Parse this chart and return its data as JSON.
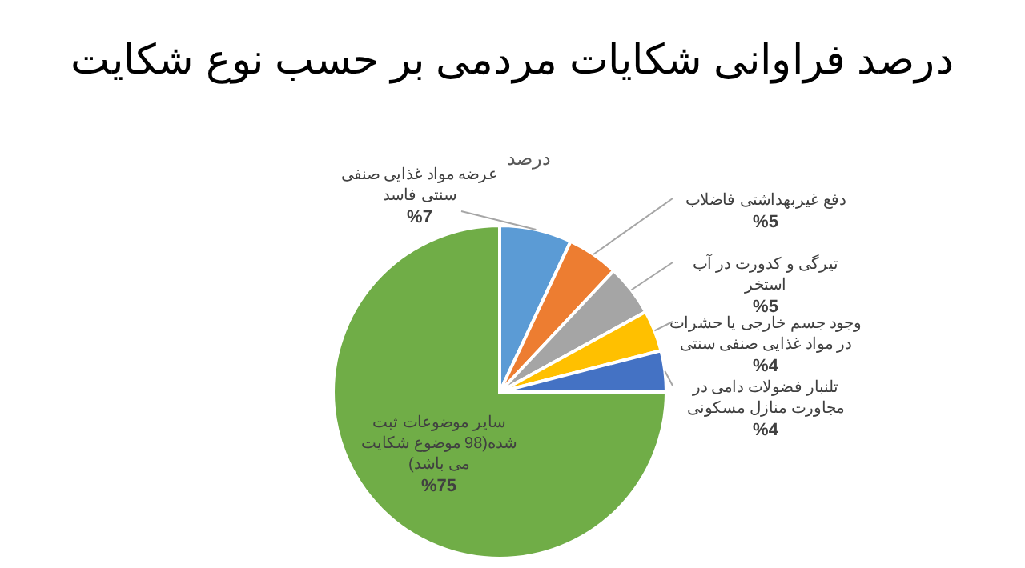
{
  "chart_data": {
    "type": "pie",
    "title": "درصد فراوانی شکایات مردمی بر حسب نوع شکایت",
    "subtitle": "درصد",
    "categories": [
      "عرضه مواد غذایی صنفی سنتی فاسد",
      "دفع غیربهداشتی فاضلاب",
      "تیرگی و کدورت در آب استخر",
      "وجود جسم خارجی یا حشرات در مواد غذایی صنفی سنتی",
      "تلنبار فضولات دامی در مجاورت منازل مسکونی",
      "سایر موضوعات ثبت شده(98 موضوع شکایت می باشد)"
    ],
    "values": [
      7,
      5,
      5,
      4,
      4,
      75
    ],
    "value_labels": [
      "%7",
      "%5",
      "%5",
      "%4",
      "%4",
      "%75"
    ],
    "colors": [
      "#5b9bd5",
      "#ed7d31",
      "#a5a5a5",
      "#ffc000",
      "#4472c4",
      "#70ad47"
    ]
  }
}
